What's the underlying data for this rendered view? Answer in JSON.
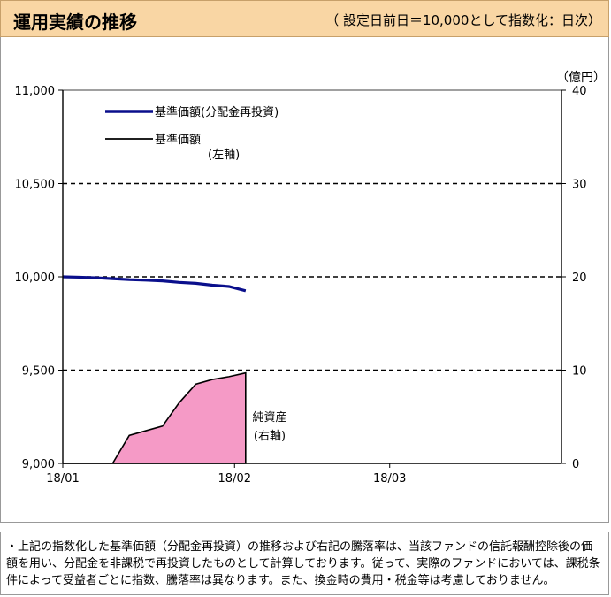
{
  "header": {
    "title": "運用実績の推移",
    "subtitle": "（ 設定日前日＝10,000として指数化：日次）"
  },
  "note": "・上記の指数化した基準価額（分配金再投資）の推移および右記の騰落率は、当該ファンドの信託報酬控除後の価額を用い、分配金を非課税で再投資したものとして計算しております。従って、実際のファンドにおいては、課税条件によって受益者ごとに指数、騰落率は異なります。また、換金時の費用・税金等は考慮しておりません。",
  "chart_data": {
    "type": "line",
    "x_tick_labels": [
      "18/01",
      "18/02",
      "18/03"
    ],
    "left_axis": {
      "ticks": [
        "9,000",
        "9,500",
        "10,000",
        "10,500",
        "11,000"
      ],
      "ylim": [
        9000,
        11000
      ],
      "label": "（左軸）"
    },
    "right_axis": {
      "ticks": [
        "0",
        "10",
        "20",
        "30",
        "40"
      ],
      "ylim": [
        0,
        40
      ],
      "unit": "（億円）"
    },
    "grid": true,
    "colors": {
      "nav_reinvest": "#0a0f8c",
      "nav": "#000000",
      "net_assets": "#f59ac6"
    },
    "legend": {
      "placement": "top-left",
      "entries": [
        "基準価額(分配金再投資)",
        "基準価額"
      ],
      "axis_note": "(左軸)"
    },
    "net_assets_label": [
      "純資産",
      "(右軸)"
    ],
    "x_days": [
      0,
      3,
      6,
      9,
      12,
      15,
      18,
      21,
      24,
      27,
      30,
      33
    ],
    "series": [
      {
        "name": "基準価額(分配金再投資)",
        "axis": "left",
        "values": [
          10000,
          9998,
          9995,
          9990,
          9985,
          9982,
          9978,
          9970,
          9965,
          9955,
          9948,
          9925
        ]
      },
      {
        "name": "基準価額",
        "axis": "left",
        "values": [
          10000,
          9998,
          9995,
          9990,
          9985,
          9982,
          9978,
          9970,
          9965,
          9955,
          9948,
          9925
        ]
      },
      {
        "name": "純資産",
        "axis": "right",
        "type": "area",
        "values": [
          0,
          0,
          0,
          0,
          3,
          3.5,
          4,
          6.5,
          8.5,
          9,
          9.3,
          9.7
        ]
      }
    ]
  }
}
